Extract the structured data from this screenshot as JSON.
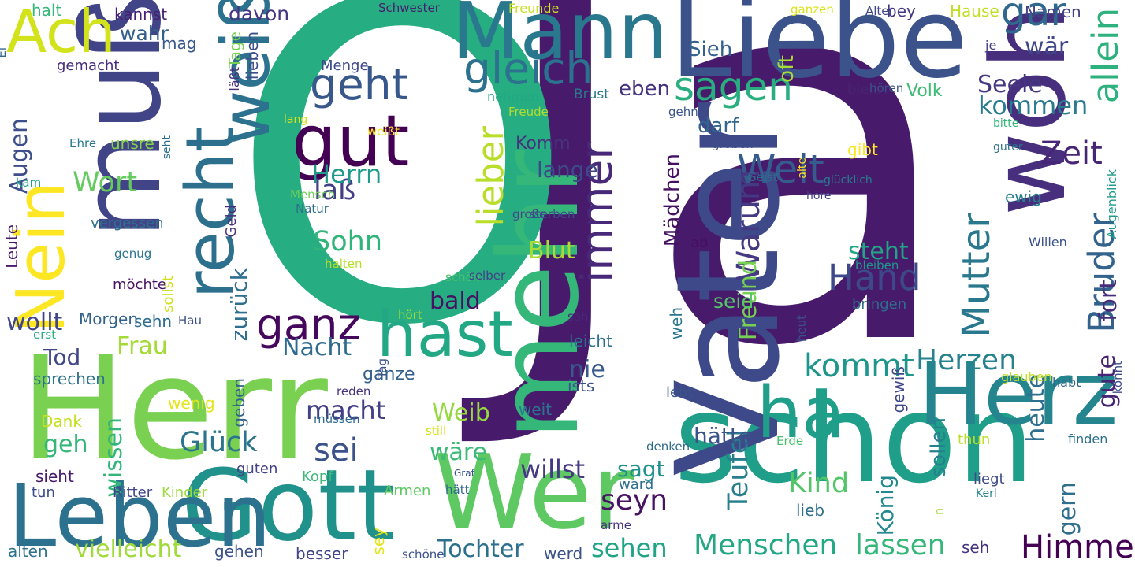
{
  "words": [
    {
      "text": "Ja",
      "color": "#481a6c"
    },
    {
      "text": "O",
      "color": "#26ad81"
    },
    {
      "text": "Herr",
      "color": "#7ad151"
    },
    {
      "text": "schon",
      "color": "#1f9e89"
    },
    {
      "text": "Liebe",
      "color": "#3b528b"
    },
    {
      "text": "wohl",
      "color": "#472f7d"
    },
    {
      "text": "Vater",
      "color": "#3e4989"
    },
    {
      "text": "muß",
      "color": "#414487"
    },
    {
      "text": "mehr",
      "color": "#35b779"
    },
    {
      "text": "Wer",
      "color": "#5ec962"
    },
    {
      "text": "Gott",
      "color": "#21918c"
    },
    {
      "text": "Leben",
      "color": "#2c728e"
    },
    {
      "text": "Herz",
      "color": "#25858e"
    },
    {
      "text": "Mann",
      "color": "#2a788e"
    },
    {
      "text": "gut",
      "color": "#440154"
    },
    {
      "text": "Ach",
      "color": "#d2e21b"
    },
    {
      "text": "recht",
      "color": "#2d708e"
    },
    {
      "text": "weiß",
      "color": "#2c728e"
    },
    {
      "text": "Nein",
      "color": "#fde725"
    },
    {
      "text": "hast",
      "color": "#22a884"
    },
    {
      "text": "ha",
      "color": "#1f9e89"
    },
    {
      "text": "immer",
      "color": "#482878"
    },
    {
      "text": "gleich",
      "color": "#2c728e"
    },
    {
      "text": "gar",
      "color": "#31688e"
    },
    {
      "text": "sagen",
      "color": "#29af7f"
    },
    {
      "text": "ganz",
      "color": "#46085c"
    },
    {
      "text": "geht",
      "color": "#38588c"
    },
    {
      "text": "Welt",
      "color": "#365c8d"
    },
    {
      "text": "Hand",
      "color": "#3e4989"
    },
    {
      "text": "Mutter",
      "color": "#2a788e"
    },
    {
      "text": "kommt",
      "color": "#1f968b"
    },
    {
      "text": "lieber",
      "color": "#b8de29"
    },
    {
      "text": "Warum",
      "color": "#443983"
    },
    {
      "text": "Zeit",
      "color": "#482677"
    },
    {
      "text": "Bruder",
      "color": "#33638d"
    },
    {
      "text": "allein",
      "color": "#2db27d"
    },
    {
      "text": "Himmel",
      "color": "#440154"
    },
    {
      "text": "Menschen",
      "color": "#22a884"
    },
    {
      "text": "lassen",
      "color": "#35b779"
    },
    {
      "text": "sehen",
      "color": "#20a486"
    },
    {
      "text": "Tochter",
      "color": "#2d708e"
    },
    {
      "text": "vielleicht",
      "color": "#a0da39"
    },
    {
      "text": "Kind",
      "color": "#52c569"
    },
    {
      "text": "seyn",
      "color": "#471365"
    },
    {
      "text": "Herzen",
      "color": "#26828e"
    },
    {
      "text": "Freund",
      "color": "#75d054"
    },
    {
      "text": "Teufel",
      "color": "#277f8e"
    },
    {
      "text": "König",
      "color": "#23898e"
    },
    {
      "text": "sollen",
      "color": "#27808e"
    },
    {
      "text": "heute",
      "color": "#2e6e8e"
    },
    {
      "text": "gern",
      "color": "#2e6e8e"
    },
    {
      "text": "gute",
      "color": "#482475"
    },
    {
      "text": "fort",
      "color": "#472c7a"
    },
    {
      "text": "Seele",
      "color": "#453781"
    },
    {
      "text": "kommen",
      "color": "#287c8e"
    },
    {
      "text": "wär",
      "color": "#3f4788"
    },
    {
      "text": "Sohn",
      "color": "#31b57b"
    },
    {
      "text": "laß",
      "color": "#433e85"
    },
    {
      "text": "Herrn",
      "color": "#1f9a8a"
    },
    {
      "text": "Nacht",
      "color": "#2f6b8e"
    },
    {
      "text": "sei",
      "color": "#3b528b"
    },
    {
      "text": "Glück",
      "color": "#2c738e"
    },
    {
      "text": "macht",
      "color": "#424086"
    },
    {
      "text": "Weib",
      "color": "#95d840"
    },
    {
      "text": "wäre",
      "color": "#3aba76"
    },
    {
      "text": "willst",
      "color": "#443983"
    },
    {
      "text": "nie",
      "color": "#38598c"
    },
    {
      "text": "Wort",
      "color": "#65cb5e"
    },
    {
      "text": "Augen",
      "color": "#3d4e8a"
    },
    {
      "text": "wollt",
      "color": "#404688"
    },
    {
      "text": "Frau",
      "color": "#a5db36"
    },
    {
      "text": "Tod",
      "color": "#3f4788"
    },
    {
      "text": "geh",
      "color": "#35b779"
    },
    {
      "text": "wissen",
      "color": "#33b67a"
    },
    {
      "text": "bald",
      "color": "#471063"
    },
    {
      "text": "Komm",
      "color": "#46337f"
    },
    {
      "text": "Blut",
      "color": "#a8db34"
    },
    {
      "text": "steht",
      "color": "#21a585"
    },
    {
      "text": "seid",
      "color": "#54c568"
    },
    {
      "text": "hätte",
      "color": "#3b528b"
    },
    {
      "text": "sagt",
      "color": "#20928c"
    },
    {
      "text": "zurück",
      "color": "#2e6e8e"
    },
    {
      "text": "Mädchen",
      "color": "#440f62"
    },
    {
      "text": "oft",
      "color": "#a8db34"
    },
    {
      "text": "Sieh",
      "color": "#34618d"
    },
    {
      "text": "eben",
      "color": "#46327e"
    },
    {
      "text": "darf",
      "color": "#32658e"
    },
    {
      "text": "bey",
      "color": "#453882"
    },
    {
      "text": "Hause",
      "color": "#c0df25"
    },
    {
      "text": "Namen",
      "color": "#424186"
    },
    {
      "text": "davon",
      "color": "#463480"
    },
    {
      "text": "wahr",
      "color": "#34608d"
    },
    {
      "text": "mag",
      "color": "#38588c"
    },
    {
      "text": "kannst",
      "color": "#482071"
    },
    {
      "text": "halt",
      "color": "#35b779"
    },
    {
      "text": "gemacht",
      "color": "#472d7b"
    },
    {
      "text": "Freunde",
      "color": "#c8e020"
    },
    {
      "text": "Schwester",
      "color": "#481c6e"
    },
    {
      "text": "ganzen",
      "color": "#dae319"
    },
    {
      "text": "Alter",
      "color": "#404588"
    },
    {
      "text": "je",
      "color": "#424186"
    },
    {
      "text": "läßt",
      "color": "#46307e"
    },
    {
      "text": "Menge",
      "color": "#3e4a89"
    },
    {
      "text": "nehmen",
      "color": "#22a785"
    },
    {
      "text": "Brust",
      "color": "#2a778e"
    },
    {
      "text": "bleibt",
      "color": "#482374"
    },
    {
      "text": "hören",
      "color": "#3b528b"
    },
    {
      "text": "Volk",
      "color": "#3fbc73"
    },
    {
      "text": "Freude",
      "color": "#b0dd2f"
    },
    {
      "text": "gehn",
      "color": "#3a548c"
    },
    {
      "text": "bitte",
      "color": "#32b67a"
    },
    {
      "text": "guter",
      "color": "#2d708e"
    },
    {
      "text": "lang",
      "color": "#d8e219"
    },
    {
      "text": "großen",
      "color": "#3d4d8a"
    },
    {
      "text": "gibt",
      "color": "#fde725"
    },
    {
      "text": "Geist",
      "color": "#2f6c8e"
    },
    {
      "text": "alte",
      "color": "#fde725"
    },
    {
      "text": "glücklich",
      "color": "#277e8e"
    },
    {
      "text": "höre",
      "color": "#424086"
    },
    {
      "text": "ewig",
      "color": "#26818e"
    },
    {
      "text": "Augenblick",
      "color": "#1f9a8a"
    },
    {
      "text": "unsre",
      "color": "#86d549"
    },
    {
      "text": "Ehre",
      "color": "#2a788e"
    },
    {
      "text": "seht",
      "color": "#2e6f8e"
    },
    {
      "text": "lieben",
      "color": "#3c4f8a"
    },
    {
      "text": "Tage",
      "color": "#7ad151"
    },
    {
      "text": "Mensch",
      "color": "#6ece58"
    },
    {
      "text": "Natur",
      "color": "#2e6e8e"
    },
    {
      "text": "weißt",
      "color": "#fde725"
    },
    {
      "text": "kam",
      "color": "#1fa088"
    },
    {
      "text": "Ei",
      "color": "#31688e"
    },
    {
      "text": "vergessen",
      "color": "#2d708e"
    },
    {
      "text": "Leute",
      "color": "#481b6d"
    },
    {
      "text": "genug",
      "color": "#2b758e"
    },
    {
      "text": "möchte",
      "color": "#471365"
    },
    {
      "text": "Geld",
      "color": "#46307e"
    },
    {
      "text": "halten",
      "color": "#b8de29"
    },
    {
      "text": "sterben",
      "color": "#3d4d8a"
    },
    {
      "text": "große",
      "color": "#3e4989"
    },
    {
      "text": "ab",
      "color": "#470d60"
    },
    {
      "text": "bleiben",
      "color": "#1f988b"
    },
    {
      "text": "Willen",
      "color": "#3b528b"
    },
    {
      "text": "schön",
      "color": "#4ac16d"
    },
    {
      "text": "selber",
      "color": "#424186"
    },
    {
      "text": "sollst",
      "color": "#d0e11c"
    },
    {
      "text": "Morgen",
      "color": "#33628d"
    },
    {
      "text": "sehn",
      "color": "#2e6e8e"
    },
    {
      "text": "Hau",
      "color": "#3c4f8a"
    },
    {
      "text": "hört",
      "color": "#a5db36"
    },
    {
      "text": "sah",
      "color": "#482878"
    },
    {
      "text": "leicht",
      "color": "#2d708e"
    },
    {
      "text": "erst",
      "color": "#27ad81"
    },
    {
      "text": "bringen",
      "color": "#2e6e8e"
    },
    {
      "text": "weh",
      "color": "#2a768e"
    },
    {
      "text": "geben",
      "color": "#33638d"
    },
    {
      "text": "ganze",
      "color": "#35608d"
    },
    {
      "text": "Tag",
      "color": "#3b528b"
    },
    {
      "text": "ists",
      "color": "#3b528b"
    },
    {
      "text": "reden",
      "color": "#46337f"
    },
    {
      "text": "lebt",
      "color": "#3b528b"
    },
    {
      "text": "heut",
      "color": "#3c4f8a"
    },
    {
      "text": "gewiß",
      "color": "#3f4788"
    },
    {
      "text": "habt",
      "color": "#31668e"
    },
    {
      "text": "könnt",
      "color": "#3e4a89"
    },
    {
      "text": "glauben",
      "color": "#c2df23"
    },
    {
      "text": "sprechen",
      "color": "#2c718e"
    },
    {
      "text": "wenig",
      "color": "#e5e419"
    },
    {
      "text": "Dank",
      "color": "#c5e021"
    },
    {
      "text": "weit",
      "color": "#2a768e"
    },
    {
      "text": "müssen",
      "color": "#2f6c8e"
    },
    {
      "text": "still",
      "color": "#d8e219"
    },
    {
      "text": "denken",
      "color": "#2f6b8e"
    },
    {
      "text": "Erde",
      "color": "#4ac16d"
    },
    {
      "text": "thun",
      "color": "#bddf26"
    },
    {
      "text": "finden",
      "color": "#2d708e"
    },
    {
      "text": "sieht",
      "color": "#481769"
    },
    {
      "text": "guten",
      "color": "#424086"
    },
    {
      "text": "Kopf",
      "color": "#3aba76"
    },
    {
      "text": "Graf",
      "color": "#3b528b"
    },
    {
      "text": "ward",
      "color": "#2e6e8e"
    },
    {
      "text": "liegt",
      "color": "#3e4a89"
    },
    {
      "text": "Kerl",
      "color": "#26828e"
    },
    {
      "text": "tun",
      "color": "#3e4989"
    },
    {
      "text": "Ritter",
      "color": "#404688"
    },
    {
      "text": "Kinder",
      "color": "#9bd93c"
    },
    {
      "text": "hätt",
      "color": "#30698e"
    },
    {
      "text": "Armen",
      "color": "#5ec962"
    },
    {
      "text": "n",
      "color": "#a0da39"
    },
    {
      "text": "sey",
      "color": "#e5e419"
    },
    {
      "text": "arme",
      "color": "#46327e"
    },
    {
      "text": "lieb",
      "color": "#2e6e8e"
    },
    {
      "text": "alten",
      "color": "#2c728e"
    },
    {
      "text": "gehen",
      "color": "#3b528b"
    },
    {
      "text": "besser",
      "color": "#404688"
    },
    {
      "text": "schöne",
      "color": "#3b528b"
    },
    {
      "text": "werd",
      "color": "#3b528b"
    },
    {
      "text": "seh",
      "color": "#46327e"
    },
    {
      "text": "lange",
      "color": "#3e4989"
    },
    {
      "text": "s",
      "color": "#440154"
    }
  ]
}
